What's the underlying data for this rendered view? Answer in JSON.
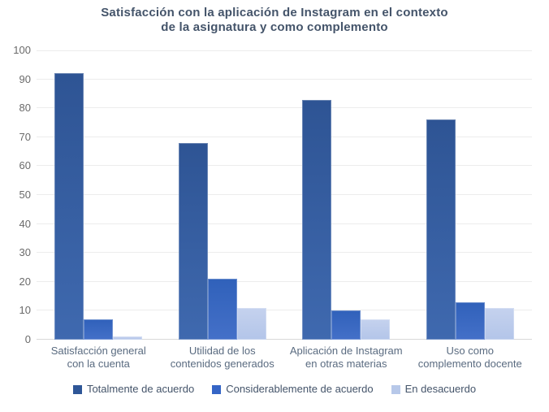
{
  "chart_data": {
    "type": "bar",
    "title": "Satisfacción con la aplicación de Instagram en el contexto de la asignatura y como complemento",
    "title_lines": [
      "Satisfacción con la aplicación de Instagram en el contexto",
      "de la asignatura y como complemento"
    ],
    "categories": [
      "Satisfacción general con la cuenta",
      "Utilidad de los contenidos generados",
      "Aplicación de Instagram en otras materias",
      "Uso como complemento docente"
    ],
    "categories_lines": [
      [
        "Satisfacción general",
        "con la cuenta"
      ],
      [
        "Utilidad de los",
        "contenidos generados"
      ],
      [
        "Aplicación de Instagram",
        "en otras materias"
      ],
      [
        "Uso como",
        "complemento docente"
      ]
    ],
    "series": [
      {
        "name": "Totalmente de acuerdo",
        "values": [
          92,
          68,
          83,
          76
        ],
        "color_top": "#2E5494",
        "color_bottom": "#3F69AF",
        "legend_color": "#2E5697"
      },
      {
        "name": "Considerablemente de acuerdo",
        "values": [
          7,
          21,
          10,
          13
        ],
        "color_top": "#3061BA",
        "color_bottom": "#4470C8",
        "legend_color": "#3565C6"
      },
      {
        "name": "En desacuerdo",
        "values": [
          1,
          11,
          7,
          11
        ],
        "color_top": "#C5D2EE",
        "color_bottom": "#B3C5E9",
        "legend_color": "#B7C8E9"
      }
    ],
    "xlabel": "",
    "ylabel": "",
    "ylim": [
      0,
      100
    ],
    "ytick_step": 10,
    "yticks": [
      0,
      10,
      20,
      30,
      40,
      50,
      60,
      70,
      80,
      90,
      100
    ],
    "grid": true,
    "legend_position": "bottom",
    "colors": {
      "title_text": "#44546A",
      "tick_text": "#6A6A6A",
      "category_text": "#5A6B80",
      "legend_text": "#44546A",
      "gridline": "#ECECEC",
      "baseline": "#D8D8D8",
      "background": "#FFFFFF"
    }
  }
}
